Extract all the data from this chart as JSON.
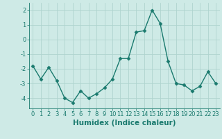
{
  "x": [
    0,
    1,
    2,
    3,
    4,
    5,
    6,
    7,
    8,
    9,
    10,
    11,
    12,
    13,
    14,
    15,
    16,
    17,
    18,
    19,
    20,
    21,
    22,
    23
  ],
  "y": [
    -1.8,
    -2.7,
    -1.9,
    -2.8,
    -4.0,
    -4.3,
    -3.5,
    -4.0,
    -3.7,
    -3.3,
    -2.7,
    -1.3,
    -1.3,
    0.5,
    0.6,
    2.0,
    1.1,
    -1.5,
    -3.0,
    -3.1,
    -3.5,
    -3.2,
    -2.2,
    -3.0
  ],
  "line_color": "#1a7a6e",
  "marker": "D",
  "marker_size": 2.5,
  "background_color": "#ceeae6",
  "grid_color": "#afd4cf",
  "xlabel": "Humidex (Indice chaleur)",
  "xlim": [
    -0.5,
    23.5
  ],
  "ylim": [
    -4.7,
    2.5
  ],
  "yticks": [
    -4,
    -3,
    -2,
    -1,
    0,
    1,
    2
  ],
  "xticks": [
    0,
    1,
    2,
    3,
    4,
    5,
    6,
    7,
    8,
    9,
    10,
    11,
    12,
    13,
    14,
    15,
    16,
    17,
    18,
    19,
    20,
    21,
    22,
    23
  ],
  "tick_color": "#1a7a6e",
  "tick_fontsize": 6.0,
  "xlabel_fontsize": 7.5,
  "line_width": 1.0
}
